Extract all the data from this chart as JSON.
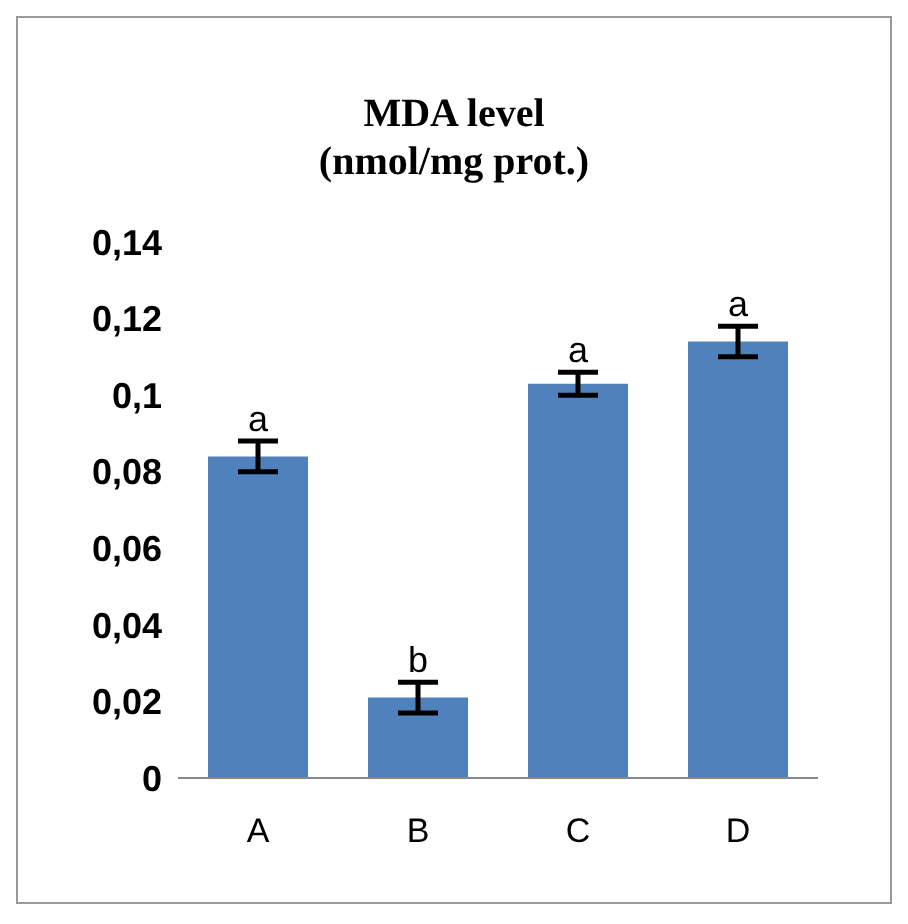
{
  "chart_data": {
    "type": "bar",
    "title": "MDA level\n(nmol/mg prot.)",
    "categories": [
      "A",
      "B",
      "C",
      "D"
    ],
    "values": [
      0.084,
      0.021,
      0.103,
      0.114
    ],
    "errors": [
      0.004,
      0.004,
      0.003,
      0.004
    ],
    "color": "#4f81bd",
    "ylim": [
      0,
      0.14
    ],
    "yticks": [
      0,
      {
        "value": 0.02,
        "label": "0,02"
      },
      {
        "value": 0.04,
        "label": "0,04"
      },
      {
        "value": 0.06,
        "label": "0,06"
      },
      {
        "value": 0.08,
        "label": "0,08"
      },
      {
        "value": 0.1,
        "label": "0,1"
      },
      {
        "value": 0.12,
        "label": "0,12"
      },
      {
        "value": 0.14,
        "label": "0,14"
      }
    ],
    "grid": false,
    "annotations": [
      {
        "text": "a",
        "x": "A",
        "y": 0.088
      },
      {
        "text": "b",
        "x": "B",
        "y": 0.025
      },
      {
        "text": "a",
        "x": "C",
        "y": 0.106
      },
      {
        "text": "a",
        "x": "D",
        "y": 0.118
      }
    ]
  }
}
